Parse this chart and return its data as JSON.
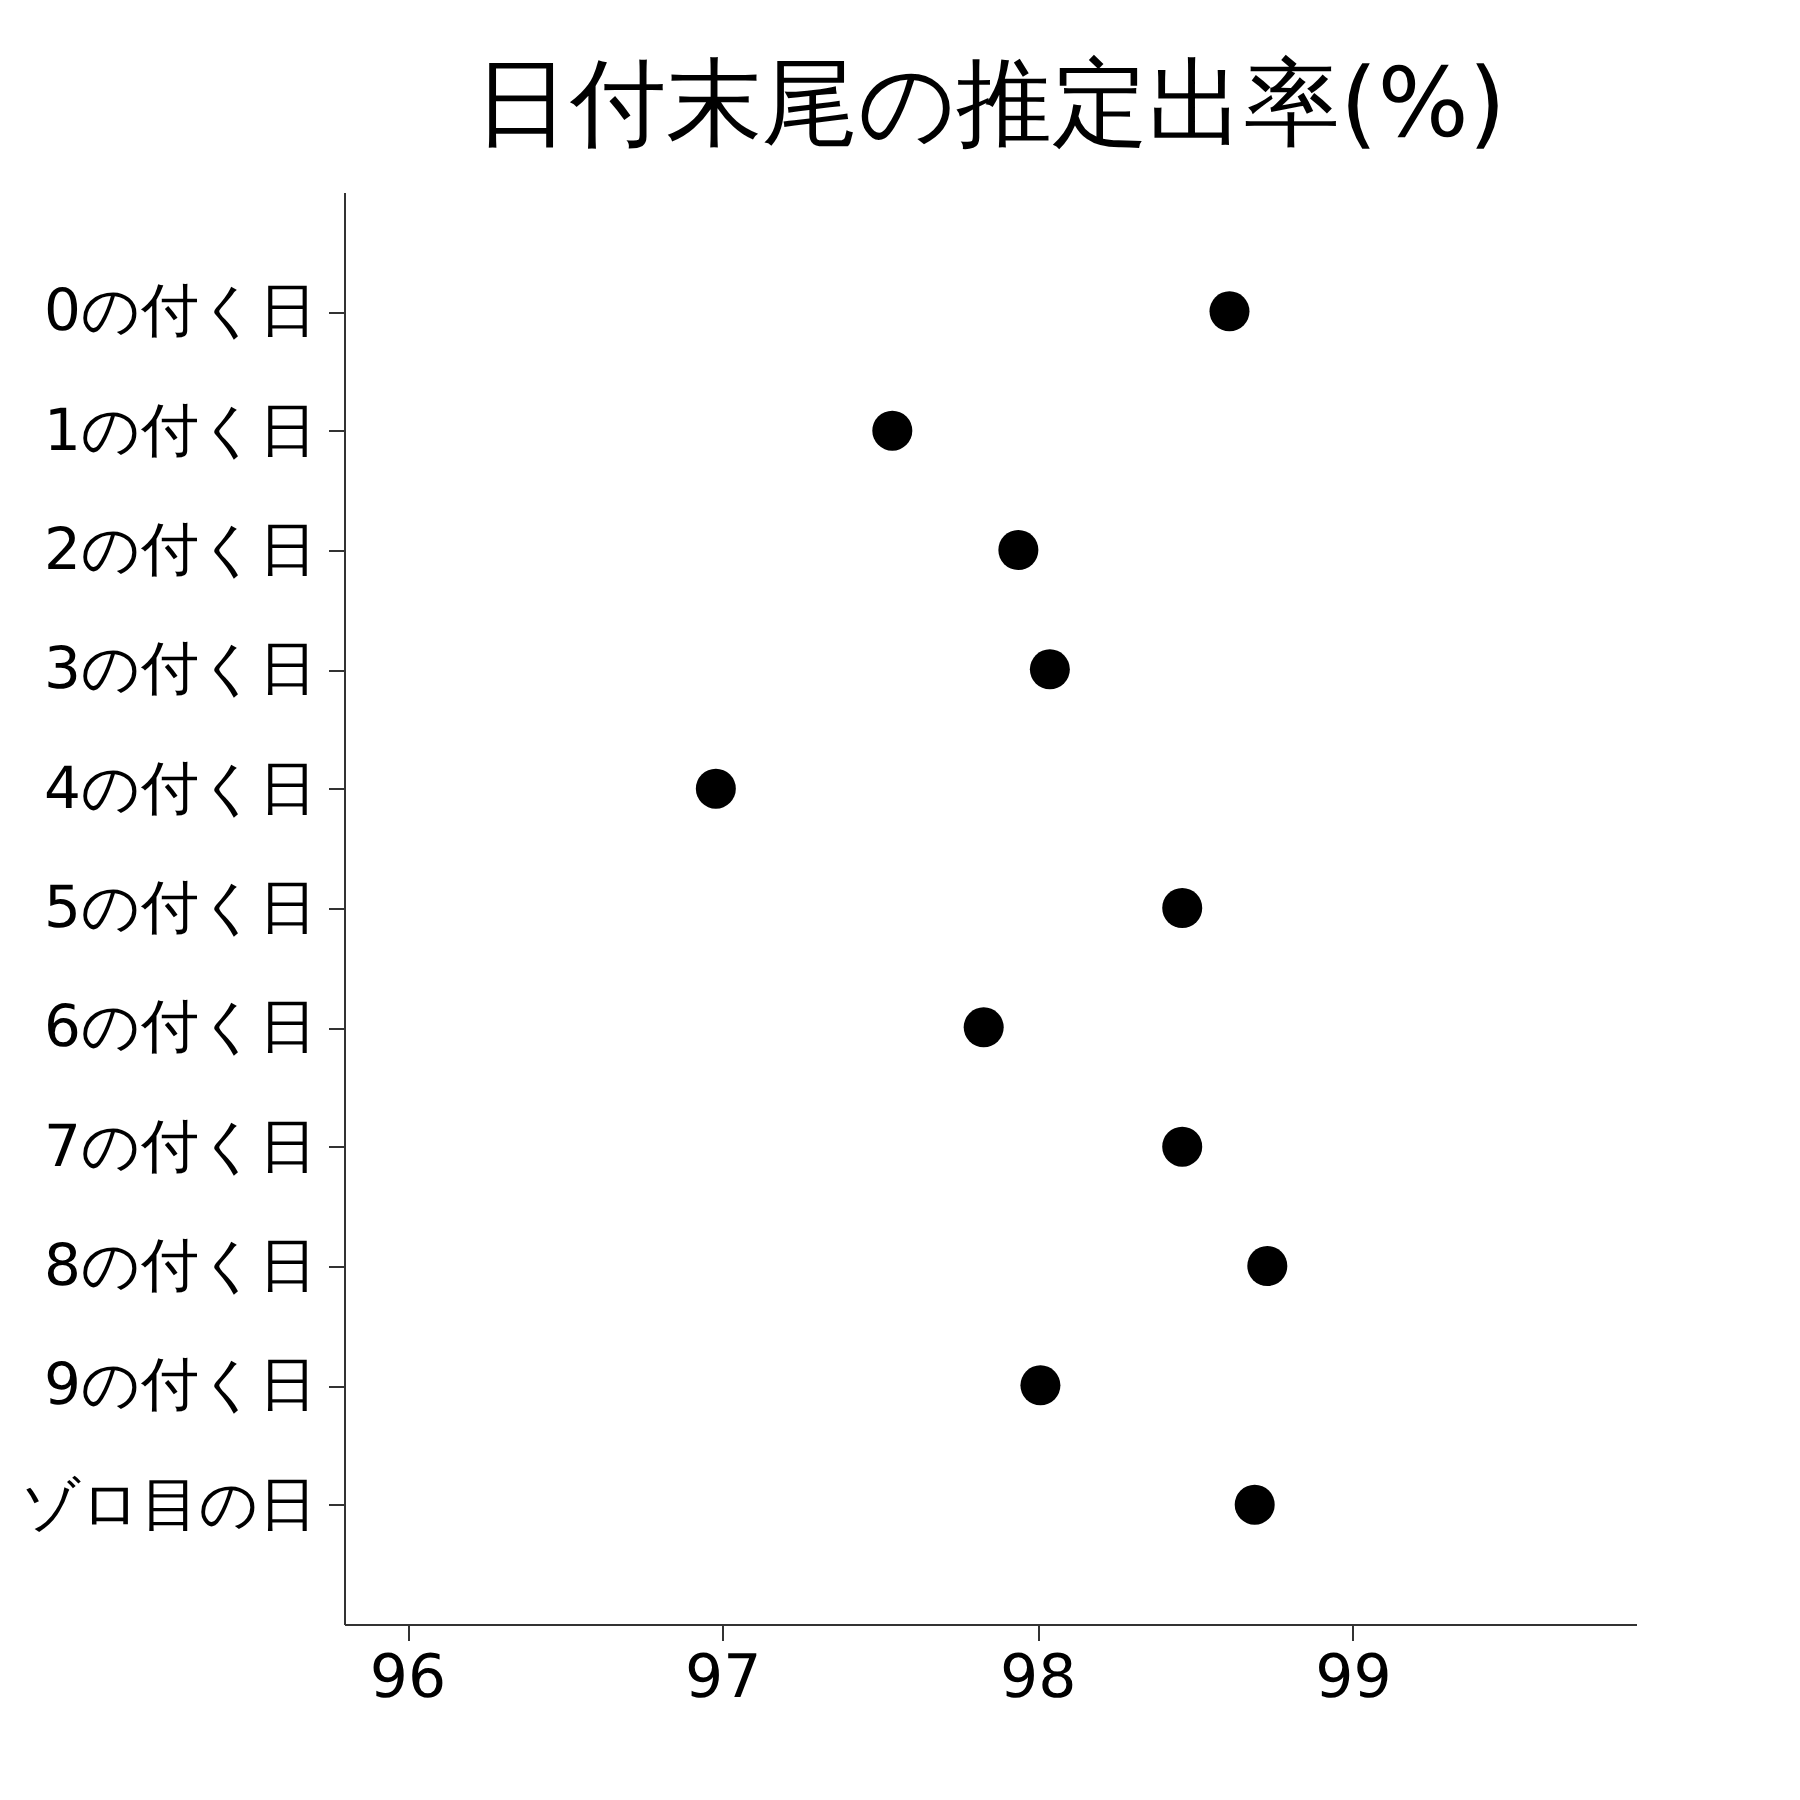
{
  "chart_data": {
    "type": "scatter",
    "title": "日付末尾の推定出率(%)",
    "categories": [
      "0の付く日",
      "1の付く日",
      "2の付く日",
      "3の付く日",
      "4の付く日",
      "5の付く日",
      "6の付く日",
      "7の付く日",
      "8の付く日",
      "9の付く日",
      "ゾロ目の日"
    ],
    "values": [
      98.61,
      97.54,
      97.94,
      98.04,
      96.98,
      98.46,
      97.83,
      98.46,
      98.73,
      98.01,
      98.69
    ],
    "color": "#000000",
    "orientation": "horizontal",
    "xlim": [
      95.8,
      99.9
    ],
    "xticks": [
      96,
      97,
      98,
      99
    ],
    "marker": "circle",
    "grid": false
  }
}
